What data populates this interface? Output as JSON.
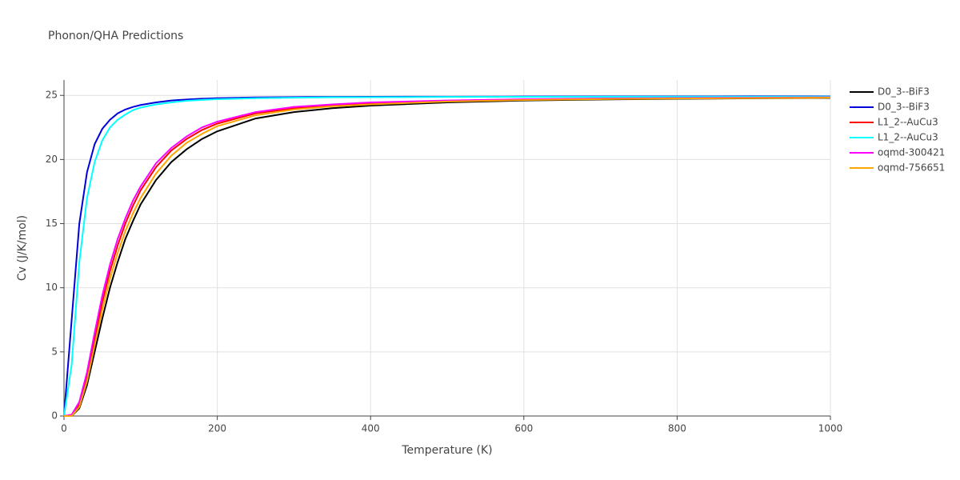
{
  "chart_data": {
    "type": "line",
    "title": "Phonon/QHA Predictions",
    "x_label": "Temperature (K)",
    "y_label": "Cv (J/K/mol)",
    "x": [
      0,
      10,
      20,
      30,
      40,
      50,
      60,
      70,
      80,
      90,
      100,
      120,
      140,
      160,
      180,
      200,
      250,
      300,
      350,
      400,
      500,
      600,
      700,
      800,
      900,
      1000
    ],
    "series": [
      {
        "name": "D0_3--BiF3",
        "color": "#000000",
        "values": [
          0,
          0,
          0.6,
          2.4,
          5,
          7.6,
          10,
          12,
          13.8,
          15.2,
          16.5,
          18.4,
          19.8,
          20.8,
          21.6,
          22.2,
          23.2,
          23.7,
          24.0,
          24.2,
          24.45,
          24.6,
          24.68,
          24.73,
          24.77,
          24.8
        ]
      },
      {
        "name": "D0_3--BiF3",
        "color": "#0000dd",
        "values": [
          0,
          7.5,
          15,
          19,
          21.2,
          22.4,
          23.1,
          23.6,
          23.9,
          24.1,
          24.25,
          24.45,
          24.6,
          24.68,
          24.74,
          24.78,
          24.84,
          24.87,
          24.88,
          24.89,
          24.9,
          24.91,
          24.92,
          24.92,
          24.93,
          24.93
        ]
      },
      {
        "name": "L1_2--AuCu3",
        "color": "#ff0000",
        "values": [
          0,
          0,
          0.9,
          3,
          6,
          8.9,
          11.3,
          13.3,
          15,
          16.4,
          17.6,
          19.4,
          20.7,
          21.6,
          22.3,
          22.8,
          23.6,
          24.0,
          24.25,
          24.4,
          24.58,
          24.68,
          24.74,
          24.78,
          24.8,
          24.83
        ]
      },
      {
        "name": "L1_2--AuCu3",
        "color": "#00ffff",
        "values": [
          0,
          4,
          12,
          17,
          19.8,
          21.5,
          22.5,
          23.1,
          23.5,
          23.85,
          24.05,
          24.3,
          24.45,
          24.58,
          24.65,
          24.7,
          24.78,
          24.82,
          24.85,
          24.86,
          24.88,
          24.89,
          24.9,
          24.9,
          24.9,
          24.91
        ]
      },
      {
        "name": "oqmd-300421",
        "color": "#ff00ff",
        "values": [
          0,
          0.1,
          1.1,
          3.4,
          6.5,
          9.4,
          11.8,
          13.8,
          15.4,
          16.8,
          17.9,
          19.7,
          20.9,
          21.8,
          22.5,
          22.95,
          23.7,
          24.1,
          24.3,
          24.45,
          24.6,
          24.7,
          24.76,
          24.8,
          24.82,
          24.85
        ]
      },
      {
        "name": "oqmd-756651",
        "color": "#ffa500",
        "values": [
          0,
          0,
          0.7,
          2.7,
          5.5,
          8.3,
          10.7,
          12.7,
          14.4,
          15.8,
          17,
          18.9,
          20.3,
          21.3,
          22,
          22.6,
          23.45,
          23.9,
          24.15,
          24.3,
          24.52,
          24.64,
          24.71,
          24.76,
          24.79,
          24.82
        ]
      }
    ],
    "xlim": [
      0,
      1000
    ],
    "xticks": [
      0,
      200,
      400,
      600,
      800,
      1000
    ],
    "ylim": [
      0,
      26.2
    ],
    "yticks": [
      0,
      5,
      10,
      15,
      20,
      25
    ],
    "grid": true,
    "legend": "right"
  }
}
